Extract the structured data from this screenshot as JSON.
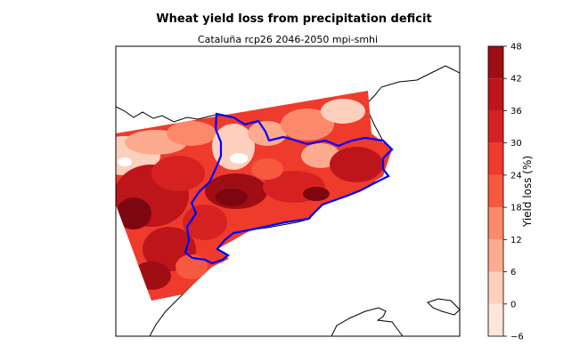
{
  "chart_data": {
    "type": "heatmap",
    "title": "Wheat yield loss from precipitation deficit",
    "subtitle": "Cataluña rcp26 2046-2050 mpi-smhi",
    "colorbar": {
      "label": "Yield loss (%)",
      "min": -6,
      "max": 48,
      "levels": [
        -6,
        0,
        6,
        12,
        18,
        24,
        30,
        36,
        42,
        48
      ],
      "tick_labels": [
        "−6",
        "0",
        "6",
        "12",
        "18",
        "24",
        "30",
        "36",
        "42",
        "48"
      ],
      "colors": [
        "#fee5d9",
        "#fdd0bd",
        "#fcab8f",
        "#fc8a6a",
        "#f7593f",
        "#ef3b2c",
        "#d52221",
        "#bd151a",
        "#9f0e14",
        "#7d0710"
      ]
    },
    "map": {
      "region": "Cataluña",
      "region_outline_color": "#0000ff",
      "coastline_color": "#000000"
    }
  }
}
